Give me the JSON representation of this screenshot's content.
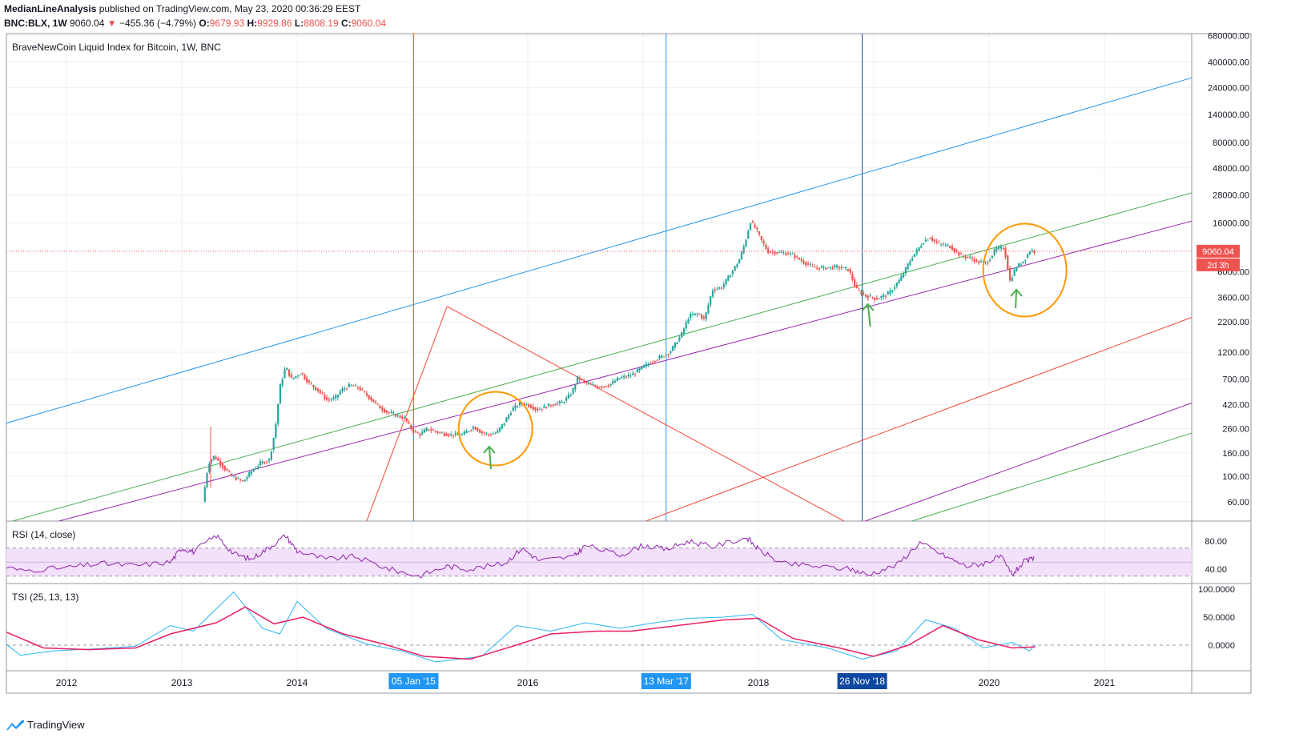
{
  "header": {
    "publisher": "MedianLineAnalysis",
    "published_text": "published on TradingView.com, May 23, 2020 00:36:29 EEST",
    "symbol": "BNC:BLX, 1W",
    "last": "9060.04",
    "change_arrow": "▼",
    "change": "−455.36 (−4.79%)",
    "open_label": "O:",
    "open": "9679.93",
    "high_label": "H:",
    "high": "9929.86",
    "low_label": "L:",
    "low": "8808.19",
    "close_label": "C:",
    "close": "9060.04"
  },
  "footer": {
    "brand": "TradingView",
    "logo_icon": "tradingview-logo-icon"
  },
  "colors": {
    "up": "#26a69a",
    "down": "#ef5350",
    "blue_line": "#2196f3",
    "green_line": "#4caf50",
    "purple_line": "#9c27b0",
    "red_line": "#f44336",
    "orange_marker": "#ff9800",
    "rsi_line": "#8e24aa",
    "rsi_band": "#f3e0fb",
    "tsi_line": "#29b6f6",
    "tsi_signal": "#e91e63",
    "price_label_bg": "#ef5350"
  },
  "chart_data": [
    {
      "type": "candlestick",
      "title": "BraveNewCoin Liquid Index for Bitcoin, 1W, BNC",
      "scale": "log",
      "current_price_label": "9060.04",
      "countdown_label": "2d 3h",
      "y_ticks": [
        "680000.00",
        "400000.00",
        "240000.00",
        "140000.00",
        "80000.00",
        "48000.00",
        "28000.00",
        "16000.00",
        "6000.00",
        "3600.00",
        "2200.00",
        "1200.00",
        "700.00",
        "420.00",
        "260.00",
        "160.00",
        "100.00",
        "60.00"
      ],
      "x_ticks": [
        "2012",
        "2013",
        "2014",
        "2016",
        "2018",
        "2020",
        "2021"
      ],
      "vertical_marker_labels": [
        "05 Jan '15",
        "13 Mar '17",
        "26 Nov '18"
      ],
      "price_path": [
        [
          2013.2,
          60
        ],
        [
          2013.25,
          130
        ],
        [
          2013.3,
          150
        ],
        [
          2013.38,
          120
        ],
        [
          2013.45,
          100
        ],
        [
          2013.55,
          90
        ],
        [
          2013.62,
          110
        ],
        [
          2013.7,
          130
        ],
        [
          2013.78,
          140
        ],
        [
          2013.83,
          260
        ],
        [
          2013.87,
          600
        ],
        [
          2013.92,
          900
        ],
        [
          2013.97,
          700
        ],
        [
          2014.05,
          800
        ],
        [
          2014.12,
          650
        ],
        [
          2014.2,
          560
        ],
        [
          2014.28,
          460
        ],
        [
          2014.35,
          480
        ],
        [
          2014.4,
          560
        ],
        [
          2014.48,
          620
        ],
        [
          2014.55,
          590
        ],
        [
          2014.65,
          480
        ],
        [
          2014.72,
          410
        ],
        [
          2014.8,
          360
        ],
        [
          2014.88,
          340
        ],
        [
          2014.95,
          320
        ],
        [
          2015.02,
          250
        ],
        [
          2015.08,
          230
        ],
        [
          2015.15,
          260
        ],
        [
          2015.25,
          240
        ],
        [
          2015.35,
          230
        ],
        [
          2015.45,
          230
        ],
        [
          2015.55,
          270
        ],
        [
          2015.62,
          240
        ],
        [
          2015.68,
          230
        ],
        [
          2015.75,
          240
        ],
        [
          2015.82,
          300
        ],
        [
          2015.88,
          380
        ],
        [
          2015.95,
          430
        ],
        [
          2016.02,
          420
        ],
        [
          2016.1,
          380
        ],
        [
          2016.22,
          420
        ],
        [
          2016.32,
          440
        ],
        [
          2016.4,
          530
        ],
        [
          2016.45,
          720
        ],
        [
          2016.52,
          650
        ],
        [
          2016.62,
          600
        ],
        [
          2016.72,
          620
        ],
        [
          2016.82,
          720
        ],
        [
          2016.92,
          760
        ],
        [
          2017.02,
          900
        ],
        [
          2017.1,
          1000
        ],
        [
          2017.18,
          1100
        ],
        [
          2017.25,
          1200
        ],
        [
          2017.35,
          1700
        ],
        [
          2017.42,
          2500
        ],
        [
          2017.5,
          2600
        ],
        [
          2017.55,
          2300
        ],
        [
          2017.62,
          4200
        ],
        [
          2017.7,
          4400
        ],
        [
          2017.78,
          5800
        ],
        [
          2017.85,
          7500
        ],
        [
          2017.9,
          10500
        ],
        [
          2017.95,
          16500
        ],
        [
          2018.0,
          14000
        ],
        [
          2018.05,
          11000
        ],
        [
          2018.1,
          9000
        ],
        [
          2018.2,
          8800
        ],
        [
          2018.3,
          8600
        ],
        [
          2018.4,
          7400
        ],
        [
          2018.5,
          6500
        ],
        [
          2018.6,
          6500
        ],
        [
          2018.7,
          6600
        ],
        [
          2018.8,
          6300
        ],
        [
          2018.87,
          4200
        ],
        [
          2018.95,
          3700
        ],
        [
          2019.05,
          3500
        ],
        [
          2019.15,
          3900
        ],
        [
          2019.25,
          5200
        ],
        [
          2019.35,
          8000
        ],
        [
          2019.45,
          11000
        ],
        [
          2019.5,
          12000
        ],
        [
          2019.58,
          10500
        ],
        [
          2019.68,
          10000
        ],
        [
          2019.78,
          8200
        ],
        [
          2019.85,
          8000
        ],
        [
          2019.92,
          7300
        ],
        [
          2020.0,
          7200
        ],
        [
          2020.08,
          9500
        ],
        [
          2020.15,
          9700
        ],
        [
          2020.2,
          5000
        ],
        [
          2020.25,
          6500
        ],
        [
          2020.32,
          7500
        ],
        [
          2020.38,
          9400
        ],
        [
          2020.4,
          9060
        ]
      ],
      "trendlines": [
        {
          "color": "blue",
          "from": [
            2011.0,
            210
          ],
          "to": [
            2021.8,
            300000
          ]
        },
        {
          "color": "green",
          "from": [
            2011.5,
            40
          ],
          "to": [
            2021.8,
            30000
          ]
        },
        {
          "color": "purple",
          "from": [
            2011.9,
            40
          ],
          "to": [
            2021.8,
            17000
          ]
        },
        {
          "color": "red",
          "from": [
            2017.0,
            40
          ],
          "to": [
            2021.8,
            2500
          ]
        },
        {
          "color": "purple",
          "from": [
            2018.9,
            40
          ],
          "to": [
            2021.8,
            450
          ]
        },
        {
          "color": "green",
          "from": [
            2019.3,
            40
          ],
          "to": [
            2021.8,
            245
          ]
        },
        {
          "color": "red",
          "from": [
            2014.6,
            40
          ],
          "to": [
            2015.3,
            3000
          ]
        },
        {
          "color": "red",
          "from": [
            2015.3,
            3000
          ],
          "to": [
            2018.8,
            38
          ]
        }
      ]
    },
    {
      "type": "line",
      "title": "RSI (14, close)",
      "y_ticks": [
        "80.00",
        "40.00"
      ],
      "band": [
        30,
        70
      ],
      "series": [
        {
          "values_by_year": [
            [
              2011.0,
              68
            ],
            [
              2011.3,
              50
            ],
            [
              2011.6,
              38
            ],
            [
              2012.0,
              42
            ],
            [
              2012.3,
              48
            ],
            [
              2012.6,
              45
            ],
            [
              2012.9,
              50
            ],
            [
              2013.0,
              70
            ],
            [
              2013.1,
              65
            ],
            [
              2013.3,
              88
            ],
            [
              2013.45,
              62
            ],
            [
              2013.6,
              54
            ],
            [
              2013.75,
              70
            ],
            [
              2013.9,
              88
            ],
            [
              2014.0,
              66
            ],
            [
              2014.25,
              54
            ],
            [
              2014.5,
              58
            ],
            [
              2014.8,
              40
            ],
            [
              2015.05,
              30
            ],
            [
              2015.3,
              44
            ],
            [
              2015.5,
              40
            ],
            [
              2015.8,
              48
            ],
            [
              2015.95,
              70
            ],
            [
              2016.1,
              52
            ],
            [
              2016.4,
              58
            ],
            [
              2016.5,
              74
            ],
            [
              2016.8,
              60
            ],
            [
              2017.0,
              74
            ],
            [
              2017.2,
              68
            ],
            [
              2017.4,
              80
            ],
            [
              2017.6,
              72
            ],
            [
              2017.9,
              85
            ],
            [
              2018.0,
              68
            ],
            [
              2018.2,
              48
            ],
            [
              2018.5,
              44
            ],
            [
              2018.8,
              40
            ],
            [
              2018.95,
              32
            ],
            [
              2019.2,
              46
            ],
            [
              2019.4,
              78
            ],
            [
              2019.6,
              60
            ],
            [
              2019.8,
              44
            ],
            [
              2019.95,
              48
            ],
            [
              2020.1,
              58
            ],
            [
              2020.2,
              32
            ],
            [
              2020.3,
              50
            ],
            [
              2020.4,
              56
            ]
          ]
        }
      ]
    },
    {
      "type": "line",
      "title": "TSI (25, 13, 13)",
      "y_ticks": [
        "100.0000",
        "50.0000",
        "0.0000"
      ],
      "series": [
        {
          "values_by_year": [
            [
              2011.0,
              72
            ],
            [
              2011.3,
              30
            ],
            [
              2011.6,
              -18
            ],
            [
              2011.9,
              -10
            ],
            [
              2012.3,
              -6
            ],
            [
              2012.6,
              -2
            ],
            [
              2012.9,
              35
            ],
            [
              2013.1,
              25
            ],
            [
              2013.45,
              95
            ],
            [
              2013.7,
              30
            ],
            [
              2013.85,
              20
            ],
            [
              2014.0,
              78
            ],
            [
              2014.25,
              30
            ],
            [
              2014.6,
              2
            ],
            [
              2014.9,
              -10
            ],
            [
              2015.2,
              -30
            ],
            [
              2015.6,
              -20
            ],
            [
              2015.9,
              35
            ],
            [
              2016.2,
              25
            ],
            [
              2016.5,
              40
            ],
            [
              2016.8,
              30
            ],
            [
              2017.1,
              40
            ],
            [
              2017.4,
              48
            ],
            [
              2017.7,
              50
            ],
            [
              2017.95,
              55
            ],
            [
              2018.2,
              10
            ],
            [
              2018.6,
              -5
            ],
            [
              2018.9,
              -25
            ],
            [
              2019.2,
              -10
            ],
            [
              2019.45,
              45
            ],
            [
              2019.7,
              30
            ],
            [
              2019.95,
              -5
            ],
            [
              2020.2,
              5
            ],
            [
              2020.35,
              -10
            ],
            [
              2020.4,
              0
            ]
          ]
        },
        {
          "values_by_year": [
            [
              2011.0,
              65
            ],
            [
              2011.4,
              30
            ],
            [
              2011.8,
              -5
            ],
            [
              2012.2,
              -8
            ],
            [
              2012.6,
              -5
            ],
            [
              2012.9,
              20
            ],
            [
              2013.3,
              40
            ],
            [
              2013.55,
              68
            ],
            [
              2013.8,
              38
            ],
            [
              2014.05,
              50
            ],
            [
              2014.4,
              20
            ],
            [
              2014.75,
              2
            ],
            [
              2015.1,
              -20
            ],
            [
              2015.5,
              -25
            ],
            [
              2015.9,
              0
            ],
            [
              2016.2,
              20
            ],
            [
              2016.6,
              25
            ],
            [
              2016.9,
              25
            ],
            [
              2017.3,
              35
            ],
            [
              2017.7,
              45
            ],
            [
              2018.0,
              48
            ],
            [
              2018.3,
              12
            ],
            [
              2018.7,
              -5
            ],
            [
              2019.0,
              -20
            ],
            [
              2019.3,
              0
            ],
            [
              2019.6,
              35
            ],
            [
              2019.9,
              10
            ],
            [
              2020.2,
              -5
            ],
            [
              2020.4,
              -3
            ]
          ]
        }
      ]
    }
  ]
}
